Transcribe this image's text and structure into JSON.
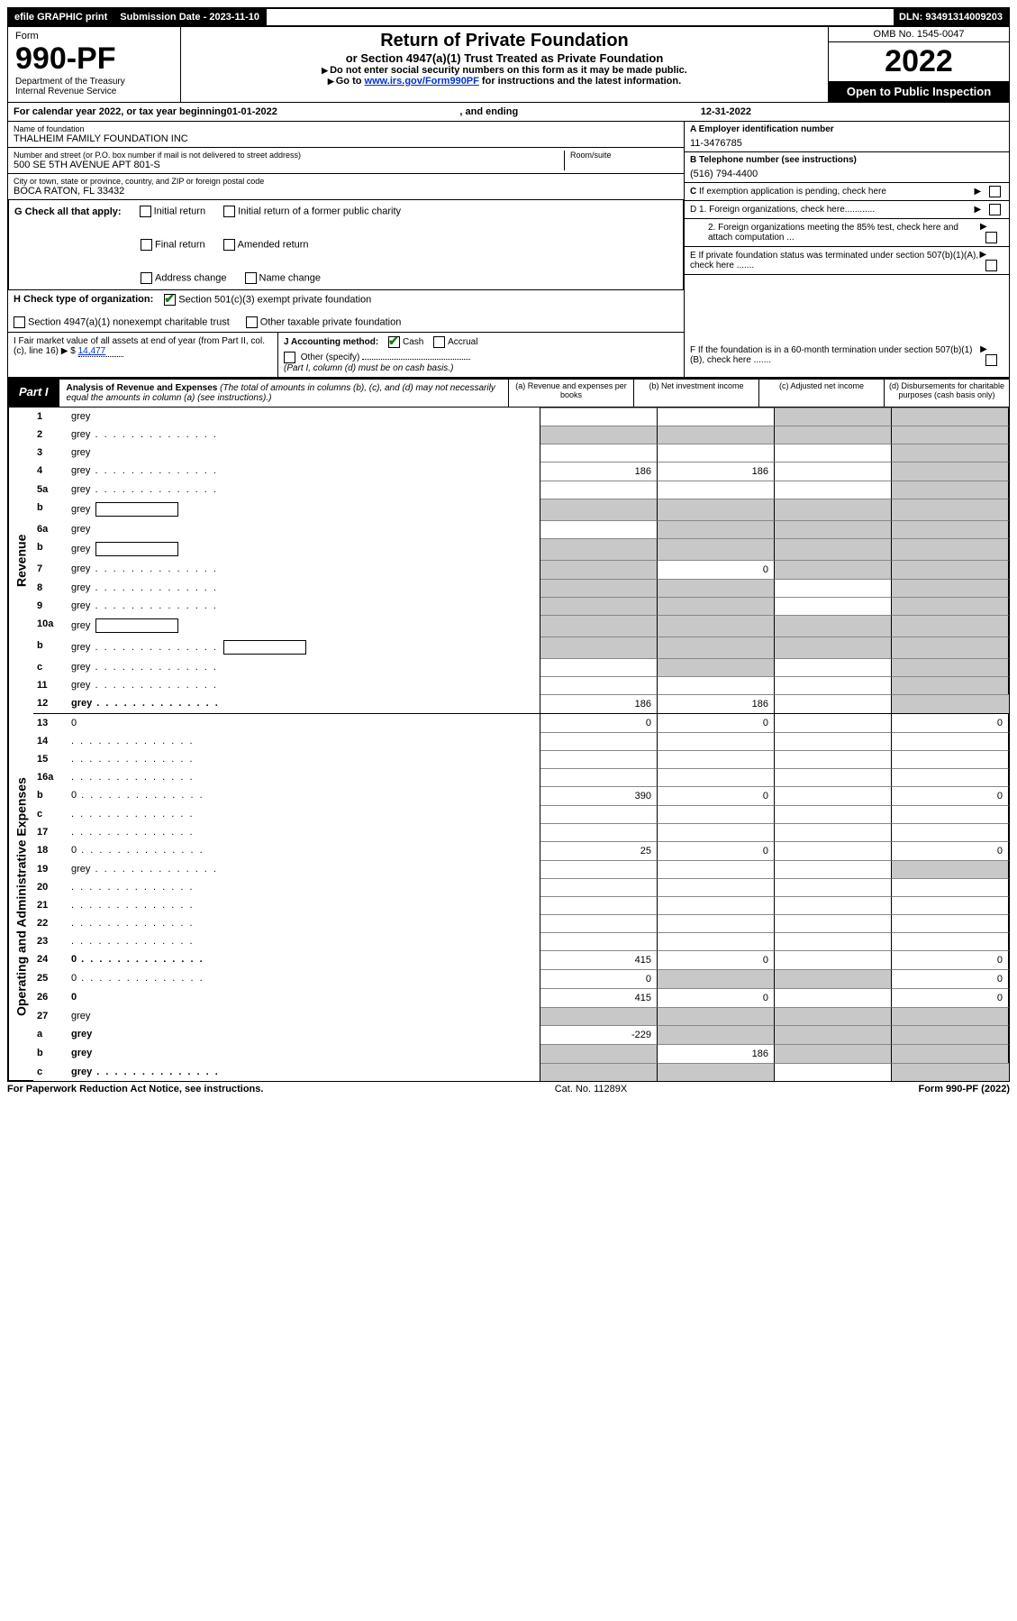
{
  "topbar": {
    "efile": "efile GRAPHIC print",
    "subdate_label": "Submission Date - ",
    "subdate": "2023-11-10",
    "dln_label": "DLN: ",
    "dln": "93491314009203"
  },
  "header": {
    "form_label": "Form",
    "form_num": "990-PF",
    "dept": "Department of the Treasury",
    "irs": "Internal Revenue Service",
    "title": "Return of Private Foundation",
    "subtitle": "or Section 4947(a)(1) Trust Treated as Private Foundation",
    "note1": "Do not enter social security numbers on this form as it may be made public.",
    "note2_pre": "Go to ",
    "note2_link": "www.irs.gov/Form990PF",
    "note2_post": " for instructions and the latest information.",
    "omb": "OMB No. 1545-0047",
    "year": "2022",
    "open": "Open to Public Inspection"
  },
  "calyear": {
    "text_pre": "For calendar year 2022, or tax year beginning ",
    "begin": "01-01-2022",
    "text_mid": " , and ending ",
    "end": "12-31-2022"
  },
  "info": {
    "name_label": "Name of foundation",
    "name": "THALHEIM FAMILY FOUNDATION INC",
    "addr_label": "Number and street (or P.O. box number if mail is not delivered to street address)",
    "addr": "500 SE 5TH AVENUE APT 801-S",
    "room_label": "Room/suite",
    "city_label": "City or town, state or province, country, and ZIP or foreign postal code",
    "city": "BOCA RATON, FL  33432",
    "ein_label": "A Employer identification number",
    "ein": "11-3476785",
    "tel_label": "B Telephone number (see instructions)",
    "tel": "(516) 794-4400",
    "c_label": "C If exemption application is pending, check here",
    "d1": "D 1. Foreign organizations, check here............",
    "d2": "2. Foreign organizations meeting the 85% test, check here and attach computation ...",
    "e_label": "E  If private foundation status was terminated under section 507(b)(1)(A), check here .......",
    "f_label": "F  If the foundation is in a 60-month termination under section 507(b)(1)(B), check here ......."
  },
  "g": {
    "label": "G Check all that apply:",
    "opts": [
      "Initial return",
      "Initial return of a former public charity",
      "Final return",
      "Amended return",
      "Address change",
      "Name change"
    ]
  },
  "h": {
    "label": "H Check type of organization:",
    "o1": "Section 501(c)(3) exempt private foundation",
    "o2": "Section 4947(a)(1) nonexempt charitable trust",
    "o3": "Other taxable private foundation"
  },
  "i": {
    "label": "I Fair market value of all assets at end of year (from Part II, col. (c), line 16)",
    "val_prefix": "▶ $ ",
    "val": "14,477"
  },
  "j": {
    "label": "J Accounting method:",
    "cash": "Cash",
    "accrual": "Accrual",
    "other": "Other (specify)",
    "note": "(Part I, column (d) must be on cash basis.)"
  },
  "part1": {
    "label": "Part I",
    "title": "Analysis of Revenue and Expenses",
    "note": " (The total of amounts in columns (b), (c), and (d) may not necessarily equal the amounts in column (a) (see instructions).)",
    "col_a": "(a)  Revenue and expenses per books",
    "col_b": "(b)  Net investment income",
    "col_c": "(c)  Adjusted net income",
    "col_d": "(d)  Disbursements for charitable purposes (cash basis only)"
  },
  "cats": {
    "revenue": "Revenue",
    "expenses": "Operating and Administrative Expenses"
  },
  "rows": [
    {
      "n": "1",
      "d": "grey",
      "a": "",
      "b": "",
      "c": "grey"
    },
    {
      "n": "2",
      "d": "grey",
      "dots": true,
      "a": "grey",
      "b": "grey",
      "c": "grey",
      "bold_not": true
    },
    {
      "n": "3",
      "d": "grey",
      "a": "",
      "b": "",
      "c": ""
    },
    {
      "n": "4",
      "d": "grey",
      "dots": true,
      "a": "186",
      "b": "186",
      "c": ""
    },
    {
      "n": "5a",
      "d": "grey",
      "dots": true,
      "a": "",
      "b": "",
      "c": ""
    },
    {
      "n": "b",
      "d": "grey",
      "inline": true,
      "a": "grey",
      "b": "grey",
      "c": "grey"
    },
    {
      "n": "6a",
      "d": "grey",
      "a": "",
      "b": "grey",
      "c": "grey"
    },
    {
      "n": "b",
      "d": "grey",
      "inline": true,
      "a": "grey",
      "b": "grey",
      "c": "grey"
    },
    {
      "n": "7",
      "d": "grey",
      "dots": true,
      "a": "grey",
      "b": "0",
      "c": "grey"
    },
    {
      "n": "8",
      "d": "grey",
      "dots": true,
      "a": "grey",
      "b": "grey",
      "c": ""
    },
    {
      "n": "9",
      "d": "grey",
      "dots": true,
      "a": "grey",
      "b": "grey",
      "c": ""
    },
    {
      "n": "10a",
      "d": "grey",
      "inline": true,
      "a": "grey",
      "b": "grey",
      "c": "grey"
    },
    {
      "n": "b",
      "d": "grey",
      "dots": true,
      "inline": true,
      "a": "grey",
      "b": "grey",
      "c": "grey"
    },
    {
      "n": "c",
      "d": "grey",
      "dots": true,
      "a": "",
      "b": "grey",
      "c": ""
    },
    {
      "n": "11",
      "d": "grey",
      "dots": true,
      "a": "",
      "b": "",
      "c": ""
    },
    {
      "n": "12",
      "d": "grey",
      "dots": true,
      "bold": true,
      "a": "186",
      "b": "186",
      "c": ""
    }
  ],
  "exp_rows": [
    {
      "n": "13",
      "d": "0",
      "a": "0",
      "b": "0",
      "c": ""
    },
    {
      "n": "14",
      "d": "",
      "dots": true,
      "a": "",
      "b": "",
      "c": ""
    },
    {
      "n": "15",
      "d": "",
      "dots": true,
      "a": "",
      "b": "",
      "c": ""
    },
    {
      "n": "16a",
      "d": "",
      "dots": true,
      "a": "",
      "b": "",
      "c": ""
    },
    {
      "n": "b",
      "d": "0",
      "dots": true,
      "a": "390",
      "b": "0",
      "c": ""
    },
    {
      "n": "c",
      "d": "",
      "dots": true,
      "a": "",
      "b": "",
      "c": ""
    },
    {
      "n": "17",
      "d": "",
      "dots": true,
      "a": "",
      "b": "",
      "c": ""
    },
    {
      "n": "18",
      "d": "0",
      "dots": true,
      "a": "25",
      "b": "0",
      "c": ""
    },
    {
      "n": "19",
      "d": "grey",
      "dots": true,
      "a": "",
      "b": "",
      "c": ""
    },
    {
      "n": "20",
      "d": "",
      "dots": true,
      "a": "",
      "b": "",
      "c": ""
    },
    {
      "n": "21",
      "d": "",
      "dots": true,
      "a": "",
      "b": "",
      "c": ""
    },
    {
      "n": "22",
      "d": "",
      "dots": true,
      "a": "",
      "b": "",
      "c": ""
    },
    {
      "n": "23",
      "d": "",
      "dots": true,
      "a": "",
      "b": "",
      "c": ""
    },
    {
      "n": "24",
      "d": "0",
      "dots": true,
      "bold": true,
      "a": "415",
      "b": "0",
      "c": ""
    },
    {
      "n": "25",
      "d": "0",
      "dots": true,
      "a": "0",
      "b": "grey",
      "c": "grey"
    },
    {
      "n": "26",
      "d": "0",
      "bold": true,
      "a": "415",
      "b": "0",
      "c": ""
    },
    {
      "n": "27",
      "d": "grey",
      "a": "grey",
      "b": "grey",
      "c": "grey"
    },
    {
      "n": "a",
      "d": "grey",
      "bold": true,
      "a": "-229",
      "b": "grey",
      "c": "grey"
    },
    {
      "n": "b",
      "d": "grey",
      "bold": true,
      "a": "grey",
      "b": "186",
      "c": "grey"
    },
    {
      "n": "c",
      "d": "grey",
      "dots": true,
      "bold": true,
      "a": "grey",
      "b": "grey",
      "c": ""
    }
  ],
  "footer": {
    "left": "For Paperwork Reduction Act Notice, see instructions.",
    "mid": "Cat. No. 11289X",
    "right": "Form 990-PF (2022)"
  }
}
